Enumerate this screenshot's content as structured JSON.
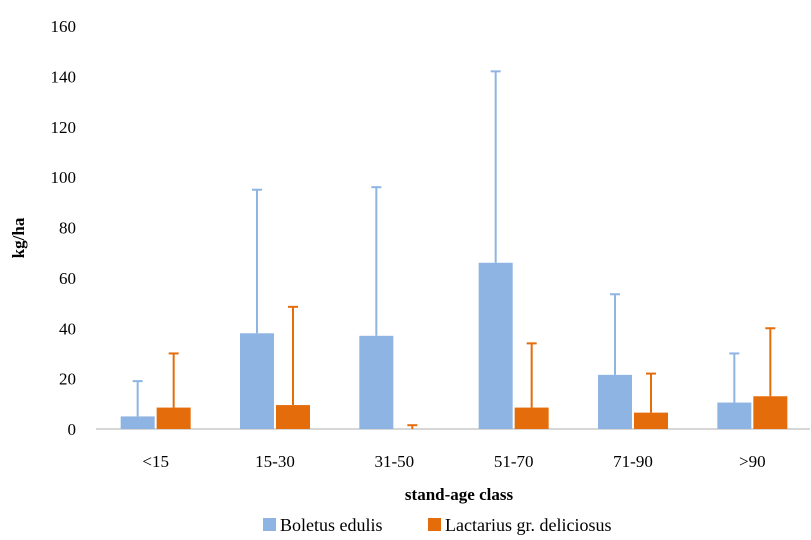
{
  "chart_data": {
    "type": "bar",
    "title": "",
    "xlabel": "stand-age class",
    "ylabel": "kg/ha",
    "categories": [
      "<15",
      "15-30",
      "31-50",
      "51-70",
      "71-90",
      ">90"
    ],
    "ylim": [
      0,
      160
    ],
    "yticks": [
      0,
      20,
      40,
      60,
      80,
      100,
      120,
      140,
      160
    ],
    "grid": false,
    "legend_position": "bottom",
    "series": [
      {
        "name": "Boletus edulis",
        "color": "#8EB4E3",
        "values": [
          5,
          38,
          37,
          66,
          21.5,
          10.5
        ],
        "error_upper": [
          19,
          95,
          96,
          142,
          53.5,
          30
        ]
      },
      {
        "name": "Lactarius gr. deliciosus",
        "color": "#E46C0A",
        "values": [
          8.5,
          9.5,
          0,
          8.5,
          6.5,
          13
        ],
        "error_upper": [
          30,
          48.5,
          1.5,
          34,
          22,
          40
        ]
      }
    ]
  }
}
